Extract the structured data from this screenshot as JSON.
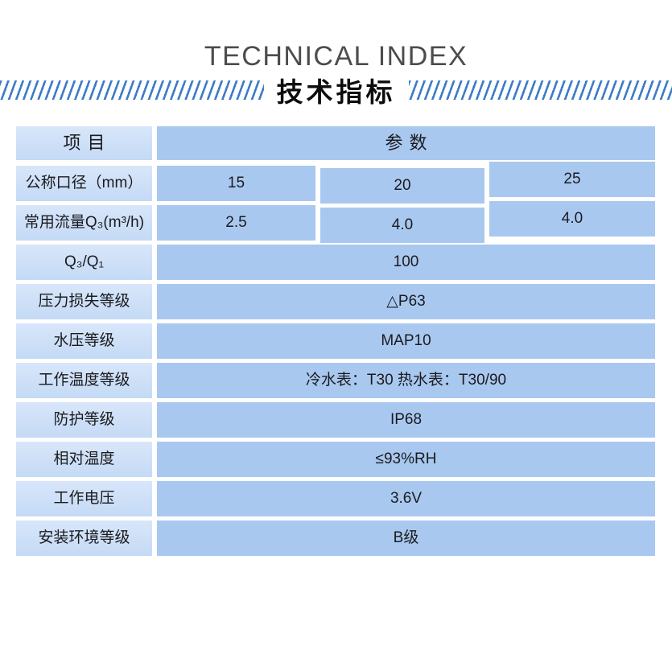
{
  "page": {
    "title_en": "TECHNICAL INDEX",
    "title_zh": "技术指标",
    "accent_color": "#3d7cc7",
    "label_cell_color": "#cbdff7",
    "data_cell_color": "#a9c8f0"
  },
  "table": {
    "header": {
      "item": "项目",
      "params": "参数"
    },
    "size_row": {
      "label": "公称口径（mm）",
      "values": [
        "15",
        "20",
        "25"
      ]
    },
    "flow_row": {
      "label": "常用流量Q₃(m³/h)",
      "values": [
        "2.5",
        "4.0",
        "4.0"
      ]
    },
    "spec_rows": [
      {
        "label": "Q₃/Q₁",
        "value": "100"
      },
      {
        "label": "压力损失等级",
        "value": "△P63"
      },
      {
        "label": "水压等级",
        "value": "MAP10"
      },
      {
        "label": "工作温度等级",
        "value": "冷水表：T30 热水表：T30/90"
      },
      {
        "label": "防护等级",
        "value": "IP68"
      },
      {
        "label": "相对温度",
        "value": "≤93%RH"
      },
      {
        "label": "工作电压",
        "value": "3.6V"
      },
      {
        "label": "安装环境等级",
        "value": "B级"
      }
    ]
  }
}
